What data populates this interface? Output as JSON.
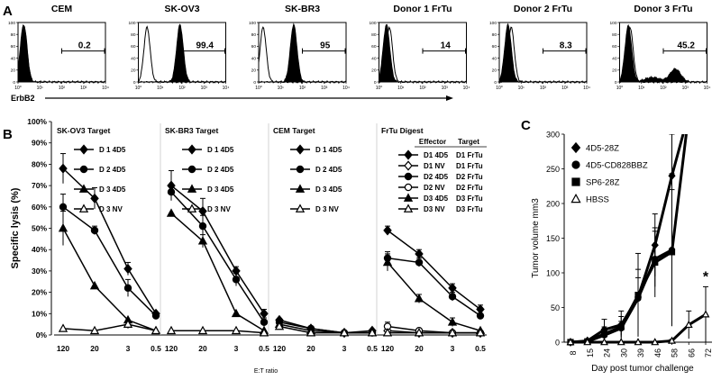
{
  "panel_labels": {
    "A": "A",
    "B": "B",
    "C": "C"
  },
  "colors": {
    "ink": "#000000",
    "paper": "#ffffff"
  },
  "chart_data": [
    {
      "type": "histogram",
      "panel": "A",
      "xlabel": "ErbB2",
      "x_scale": "log",
      "xlim": [
        1,
        10000
      ],
      "tick_labels": [
        "10⁰",
        "10¹",
        "10²",
        "10³",
        "10⁴"
      ],
      "y_tick_labels": [
        "0",
        "20",
        "40",
        "60",
        "80",
        "100"
      ],
      "panels": [
        {
          "title": "CEM",
          "gate_percent": "0.2",
          "stained_peak": 1.8,
          "control_peak": 1.9,
          "stained_tail": 0
        },
        {
          "title": "SK-OV3",
          "gate_percent": "99.4",
          "stained_peak": 80,
          "control_peak": 2.5,
          "stained_tail": 0
        },
        {
          "title": "SK-BR3",
          "gate_percent": "95",
          "stained_peak": 40,
          "control_peak": 1.6,
          "stained_tail": 0
        },
        {
          "title": "Donor 1 FrTu",
          "gate_percent": "14",
          "stained_peak": 2.2,
          "control_peak": 3.0,
          "stained_tail": 0
        },
        {
          "title": "Donor 2 FrTu",
          "gate_percent": "8.3",
          "stained_peak": 2.5,
          "control_peak": 3.5,
          "stained_tail": 0
        },
        {
          "title": "Donor 3 FrTu",
          "gate_percent": "45.2",
          "stained_peak": 2.5,
          "control_peak": 3.0,
          "stained_tail": 1
        }
      ]
    },
    {
      "type": "line",
      "panel": "B",
      "ylabel": "Specific lysis (%)",
      "xlabel": "E:T ratio",
      "categories": [
        "120",
        "20",
        "3",
        "0.5"
      ],
      "ylim": [
        0,
        100
      ],
      "y_tick_labels": [
        "0%",
        "10%",
        "20%",
        "30%",
        "40%",
        "50%",
        "60%",
        "70%",
        "80%",
        "90%",
        "100%"
      ],
      "subplots": [
        {
          "title": "SK-OV3 Target",
          "series": [
            {
              "name": "D 1 4D5",
              "marker": "diamond",
              "values": [
                78,
                64,
                31,
                10
              ],
              "errors": [
                7,
                5,
                3,
                1
              ]
            },
            {
              "name": "D 2 4D5",
              "marker": "circle",
              "values": [
                60,
                49,
                22,
                9
              ],
              "errors": [
                6,
                2,
                4,
                1
              ]
            },
            {
              "name": "D 3 4D5",
              "marker": "triangle",
              "values": [
                50,
                23,
                7,
                2
              ],
              "errors": [
                8,
                1,
                1,
                1
              ]
            },
            {
              "name": "D 3 NV",
              "marker": "open-triangle",
              "values": [
                3,
                2,
                5,
                2
              ],
              "errors": [
                1,
                1,
                2,
                1
              ]
            }
          ]
        },
        {
          "title": "SK-BR3 Target",
          "series": [
            {
              "name": "D 1 4D5",
              "marker": "diamond",
              "values": [
                70,
                58,
                30,
                10
              ],
              "errors": [
                7,
                6,
                2,
                2
              ]
            },
            {
              "name": "D 2 4D5",
              "marker": "circle",
              "values": [
                67,
                51,
                26,
                6
              ],
              "errors": [
                3,
                5,
                3,
                2
              ]
            },
            {
              "name": "D 3 4D5",
              "marker": "triangle",
              "values": [
                57,
                44,
                10,
                2
              ],
              "errors": [
                1,
                3,
                1,
                1
              ]
            },
            {
              "name": "D 3 NV",
              "marker": "open-triangle",
              "values": [
                2,
                2,
                2,
                1
              ],
              "errors": [
                1,
                1,
                1,
                1
              ]
            }
          ]
        },
        {
          "title": "CEM Target",
          "series": [
            {
              "name": "D 1 4D5",
              "marker": "diamond",
              "values": [
                7,
                3,
                1,
                2
              ],
              "errors": [
                1,
                1,
                1,
                1
              ]
            },
            {
              "name": "D 2 4D5",
              "marker": "circle",
              "values": [
                6,
                3,
                1,
                1
              ],
              "errors": [
                1,
                1,
                1,
                1
              ]
            },
            {
              "name": "D 3 4D5",
              "marker": "triangle",
              "values": [
                5,
                2,
                1,
                1
              ],
              "errors": [
                1,
                1,
                1,
                1
              ]
            },
            {
              "name": "D 3 NV",
              "marker": "open-triangle",
              "values": [
                4,
                1,
                1,
                1
              ],
              "errors": [
                1,
                1,
                1,
                1
              ]
            }
          ]
        },
        {
          "title": "FrTu Digest",
          "legend_headers": [
            "Effector",
            "Target"
          ],
          "series": [
            {
              "name": "D1 4D5",
              "target": "D1 FrTu",
              "marker": "diamond",
              "values": [
                49,
                38,
                22,
                12
              ],
              "errors": [
                2,
                2,
                2,
                2
              ]
            },
            {
              "name": "D1 NV",
              "target": "D1 FrTu",
              "marker": "open-diamond",
              "values": [
                2,
                1,
                1,
                1
              ],
              "errors": [
                1,
                1,
                1,
                1
              ]
            },
            {
              "name": "D2 4D5",
              "target": "D2 FrTu",
              "marker": "circle",
              "values": [
                36,
                34,
                18,
                9
              ],
              "errors": [
                3,
                2,
                2,
                1
              ]
            },
            {
              "name": "D2 NV",
              "target": "D2 FrTu",
              "marker": "open-circle",
              "values": [
                4,
                2,
                1,
                1
              ],
              "errors": [
                2,
                1,
                1,
                1
              ]
            },
            {
              "name": "D3 4D5",
              "target": "D3 FrTu",
              "marker": "triangle",
              "values": [
                34,
                17,
                6,
                2
              ],
              "errors": [
                4,
                2,
                2,
                1
              ]
            },
            {
              "name": "D3 NV",
              "target": "D3 FrTu",
              "marker": "open-triangle",
              "values": [
                1,
                1,
                1,
                1
              ],
              "errors": [
                1,
                1,
                1,
                1
              ]
            }
          ]
        }
      ]
    },
    {
      "type": "line",
      "panel": "C",
      "ylabel": "Tumor volume mm3",
      "xlabel": "Day post tumor challenge",
      "categories": [
        "8",
        "15",
        "24",
        "30",
        "39",
        "46",
        "58",
        "66",
        "72"
      ],
      "ylim": [
        0,
        300
      ],
      "y_tick_labels": [
        "0",
        "50",
        "100",
        "150",
        "200",
        "250",
        "300"
      ],
      "annotation": "*",
      "series": [
        {
          "name": "4D5-28Z",
          "marker": "diamond",
          "values": [
            0,
            2,
            18,
            25,
            65,
            140,
            240,
            330,
            null
          ],
          "errors": [
            1,
            2,
            15,
            20,
            40,
            45,
            60,
            0,
            null
          ]
        },
        {
          "name": "4D5-CD828BBZ",
          "marker": "circle",
          "values": [
            0,
            1,
            10,
            20,
            63,
            120,
            133,
            null,
            null
          ],
          "errors": [
            1,
            1,
            8,
            10,
            30,
            40,
            110,
            null,
            null
          ]
        },
        {
          "name": "SP6-28Z",
          "marker": "square",
          "values": [
            0,
            1,
            12,
            22,
            68,
            115,
            130,
            330,
            null
          ],
          "errors": [
            1,
            1,
            10,
            15,
            60,
            50,
            90,
            0,
            null
          ]
        },
        {
          "name": "HBSS",
          "marker": "open-triangle",
          "values": [
            0,
            0,
            0,
            0,
            0,
            0,
            2,
            25,
            40
          ],
          "errors": [
            0,
            0,
            0,
            0,
            0,
            0,
            2,
            20,
            40
          ]
        }
      ]
    }
  ]
}
